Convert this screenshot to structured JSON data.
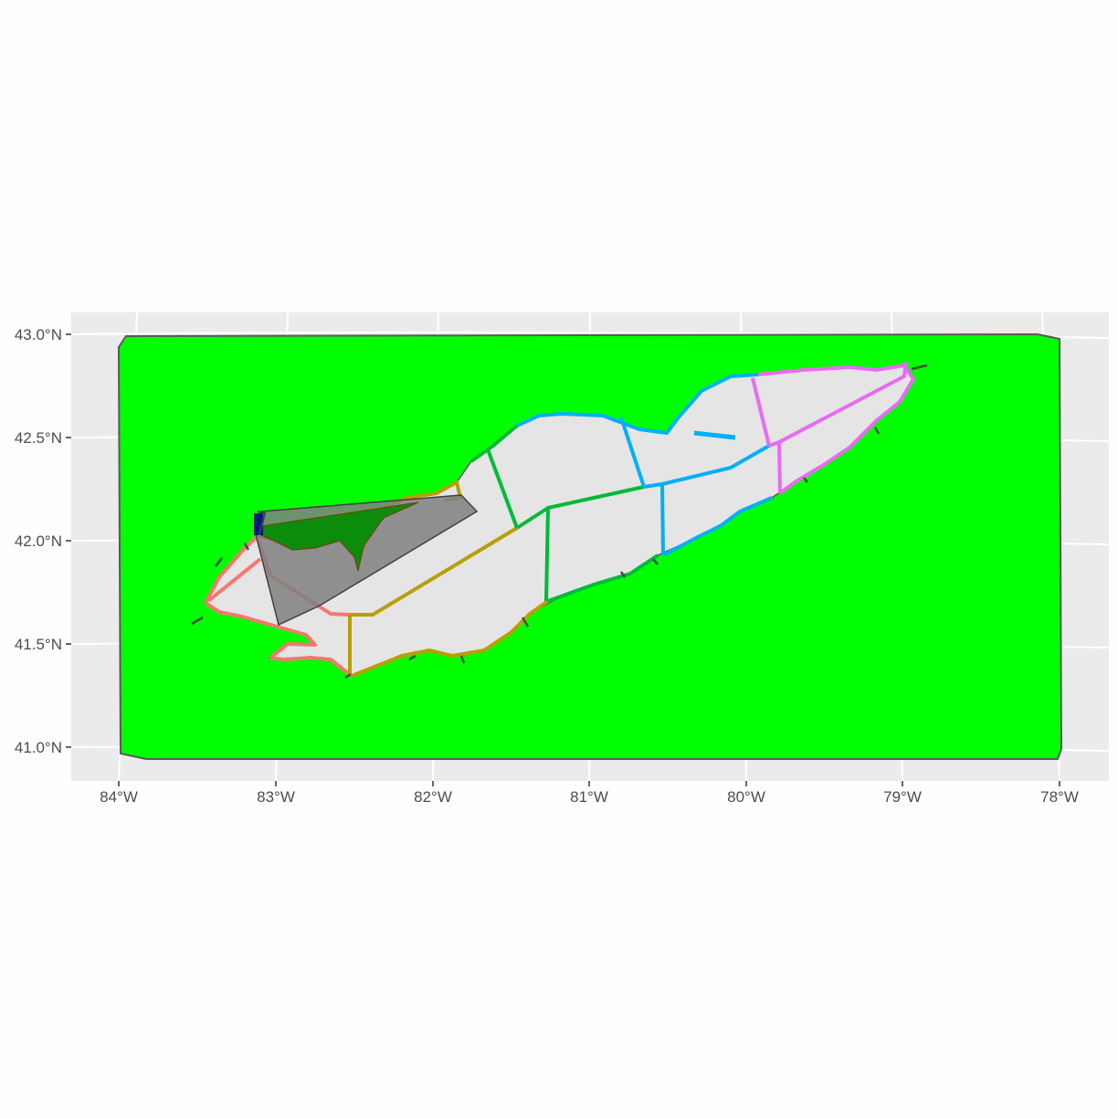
{
  "chart_data": {
    "type": "map",
    "title": "",
    "xlabel": "",
    "ylabel": "",
    "xlim": [
      -84.3,
      -77.7
    ],
    "ylim": [
      40.85,
      43.1
    ],
    "x_ticks": [
      {
        "value": -84,
        "label": "84°W"
      },
      {
        "value": -83,
        "label": "83°W"
      },
      {
        "value": -82,
        "label": "82°W"
      },
      {
        "value": -81,
        "label": "81°W"
      },
      {
        "value": -80,
        "label": "80°W"
      },
      {
        "value": -79,
        "label": "79°W"
      },
      {
        "value": -78,
        "label": "78°W"
      }
    ],
    "y_ticks": [
      {
        "value": 43.0,
        "label": "43.0°N"
      },
      {
        "value": 42.5,
        "label": "42.5°N"
      },
      {
        "value": 42.0,
        "label": "42.0°N"
      },
      {
        "value": 41.5,
        "label": "41.5°N"
      },
      {
        "value": 41.0,
        "label": "41.0°N"
      }
    ],
    "grid": true,
    "legend": "none",
    "colors": {
      "panel_background": "#ebebeb",
      "grid": "#ffffff",
      "bbox_fill": "#00ff00",
      "bbox_outline": "#595959",
      "lake_fill": "#e5e5e5",
      "overlay_fill": "#808080",
      "overlay_dark": "#008c00",
      "marker": "#00008b"
    },
    "layers": [
      {
        "name": "bounding-box",
        "fill": "#00ff00",
        "outline": "#595959",
        "lon_lat": [
          [
            -84.0,
            43.0
          ],
          [
            -78.0,
            43.0
          ],
          [
            -78.0,
            40.93
          ],
          [
            -84.0,
            40.93
          ]
        ]
      },
      {
        "name": "lake-outline",
        "fill": "#e5e5e5",
        "outline": "#595959"
      },
      {
        "name": "basin-1",
        "color": "#f8766d"
      },
      {
        "name": "basin-2",
        "color": "#b79f00"
      },
      {
        "name": "basin-3",
        "color": "#00ba38"
      },
      {
        "name": "basin-4",
        "color": "#00bfc4"
      },
      {
        "name": "basin-5",
        "color": "#619cff"
      },
      {
        "name": "basin-6",
        "color": "#f564e3"
      },
      {
        "name": "query-polygon",
        "fill": "#808080",
        "outline": "#404040"
      },
      {
        "name": "intersection",
        "fill": "#008c00"
      }
    ]
  }
}
